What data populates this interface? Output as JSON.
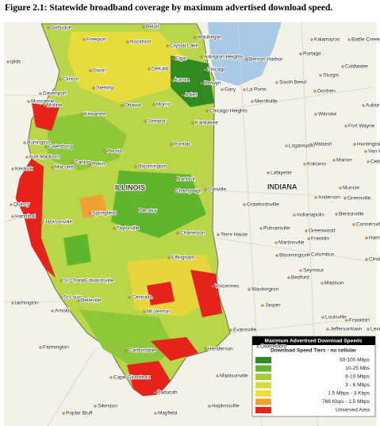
{
  "title": "Figure 2.1:  Statewide broadband coverage by maximum advertised download speed.",
  "map": {
    "state_labels": [
      "ILLINOIS",
      "INDIANA"
    ],
    "cities": [
      "Dubuque",
      "Beloit",
      "Waukegan",
      "Kalamazoo",
      "Battle Creek",
      "Freeport",
      "Rockford",
      "Crystal Lake",
      "Portage",
      "Arlington Heights",
      "Elgin",
      "Benton Harbor",
      "Coldwater",
      "ipids",
      "Dixon",
      "DeKalb",
      "Chicago",
      "Sturgis",
      "Clinton",
      "Aurora",
      "South Bend",
      "Sterling",
      "Berwyn",
      "Gary",
      "La Porte",
      "Goshen",
      "Davenport",
      "Joliet",
      "Muscatine",
      "Moline",
      "Ottawa",
      "Morris",
      "Chicago Heights",
      "Merrillville",
      "Auburn",
      "Kewanee",
      "Warsaw",
      "Streator",
      "Kankakee",
      "Fort Wayne",
      "Burlington",
      "Galesburg",
      "Pontiac",
      "Logansport",
      "Wabash",
      "Huntington",
      "Van We",
      "Fort Madison",
      "Canton",
      "Peoria",
      "Kokomo",
      "Marion",
      "Celin",
      "Pekin",
      "Bloomington",
      "Macomb",
      "Keokuk",
      "Lafayette",
      "Rantoul",
      "Muncie",
      "Champaign",
      "Danville",
      "Anderson",
      "Greenville",
      "Quincy",
      "Crawfordsville",
      "Decatur",
      "Springfield",
      "Indianapolis",
      "Hannibal",
      "Jacksonville",
      "Bentonville",
      "Connersville",
      "Taylorville",
      "Putnamville",
      "Greenwood",
      "Charleston",
      "Terre Haute",
      "Martinsville",
      "Franklin",
      "Hamilt",
      "Bloomington",
      "Columbus",
      "Cincir",
      "Effingham",
      "Seymour",
      "Bedford",
      "Madison",
      "St Charles",
      "Edwardsville",
      "Vincennes",
      "Washington",
      "St Louis",
      "Belleville",
      "Centralia",
      "Jasper",
      "lashington",
      "Arnold",
      "Mt Vernon",
      "Frankfort",
      "Louisville",
      "Jeffersontown",
      "Lexin",
      "Evansville",
      "Farmington",
      "Henderson",
      "Owensboro",
      "Carbondale",
      "Cape Girardeau",
      "Madisonville",
      "Paducah",
      "Sikeston",
      "Hopkinsville",
      "Poplar Bluff",
      "Mayfield"
    ]
  },
  "legend": {
    "title": "Maximum Advertised Download Speeds",
    "subtitle": "Download Speed Tiers - no cellular",
    "tiers": [
      {
        "label": "50-100 Mbps",
        "color": "#2f8a1f"
      },
      {
        "label": "10-25 Mbs",
        "color": "#5fb52c"
      },
      {
        "label": "6-10 Mbps",
        "color": "#a5cf3a"
      },
      {
        "label": "3 - 6 Mbps",
        "color": "#d4df3c"
      },
      {
        "label": "1.5 Mbps - 3 Kbps",
        "color": "#f0de38"
      },
      {
        "label": "768 Kbps - 1.5 Mbps",
        "color": "#eea232"
      },
      {
        "label": "Unserved Area",
        "color": "#e5231b"
      }
    ]
  }
}
